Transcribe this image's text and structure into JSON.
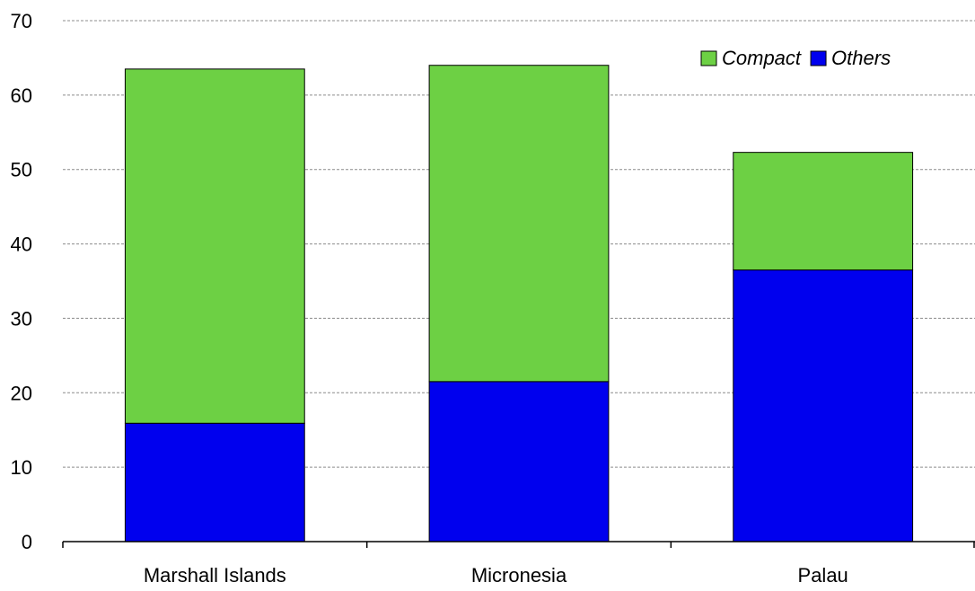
{
  "chart_data": {
    "type": "bar",
    "stacked": true,
    "title": "",
    "xlabel": "",
    "ylabel": "",
    "categories": [
      "Marshall Islands",
      "Micronesia",
      "Palau"
    ],
    "series": [
      {
        "name": "Others",
        "values": [
          15.9,
          21.5,
          36.5
        ],
        "color": "#0000ee"
      },
      {
        "name": "Compact",
        "values": [
          47.6,
          42.5,
          15.8
        ],
        "color": "#6dd044"
      }
    ],
    "ylim": [
      0,
      70
    ],
    "yticks": [
      0,
      10,
      20,
      30,
      40,
      50,
      60,
      70
    ],
    "grid": true,
    "legend_position": "top-right",
    "legend_order": [
      "Compact",
      "Others"
    ]
  }
}
